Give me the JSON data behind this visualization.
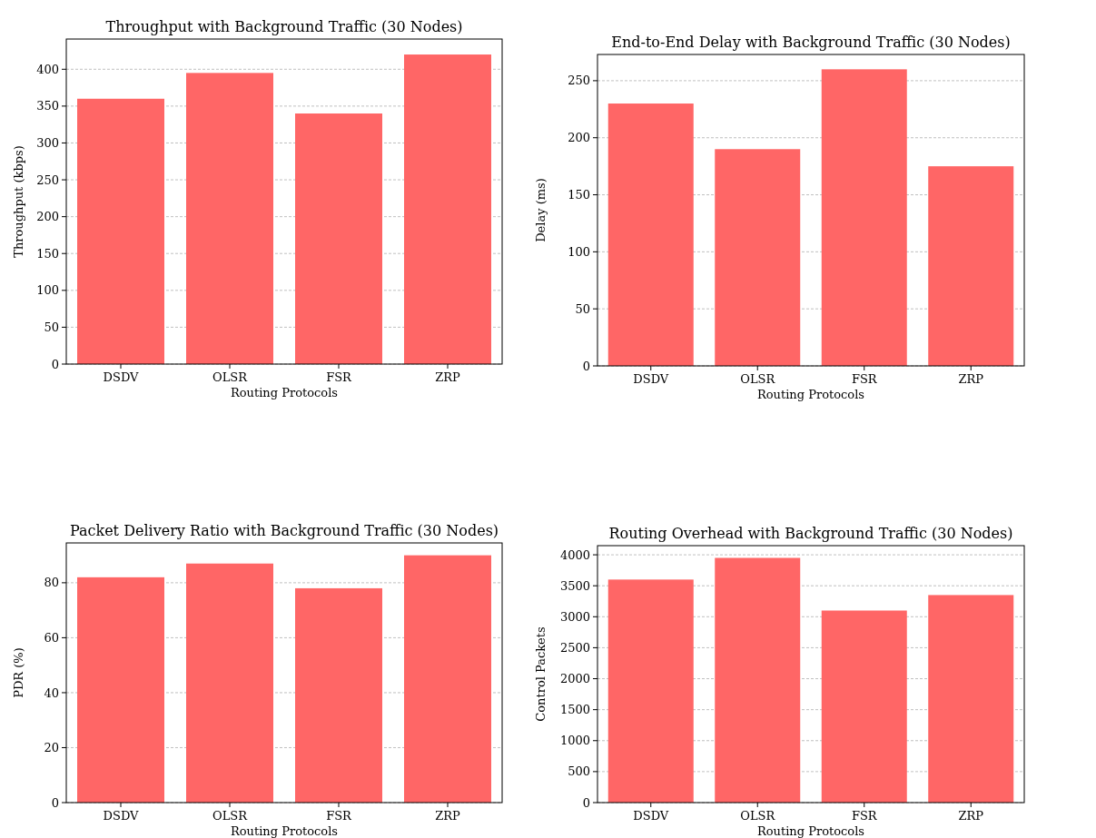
{
  "chart_data": [
    {
      "type": "bar",
      "title": "Throughput with Background Traffic (30 Nodes)",
      "xlabel": "Routing Protocols",
      "ylabel": "Throughput (kbps)",
      "categories": [
        "DSDV",
        "OLSR",
        "FSR",
        "ZRP"
      ],
      "values": [
        360,
        395,
        340,
        420
      ],
      "color": "#ff6666",
      "ylim": [
        0,
        441
      ],
      "yticks": [
        0,
        50,
        100,
        150,
        200,
        250,
        300,
        350,
        400
      ],
      "grid": "y"
    },
    {
      "type": "bar",
      "title": "End-to-End Delay with Background Traffic (30 Nodes)",
      "xlabel": "Routing Protocols",
      "ylabel": "Delay (ms)",
      "categories": [
        "DSDV",
        "OLSR",
        "FSR",
        "ZRP"
      ],
      "values": [
        230,
        190,
        260,
        175
      ],
      "color": "#ff6666",
      "ylim": [
        0,
        273
      ],
      "yticks": [
        0,
        50,
        100,
        150,
        200,
        250
      ],
      "grid": "y"
    },
    {
      "type": "bar",
      "title": "Packet Delivery Ratio with Background Traffic (30 Nodes)",
      "xlabel": "Routing Protocols",
      "ylabel": "PDR (%)",
      "categories": [
        "DSDV",
        "OLSR",
        "FSR",
        "ZRP"
      ],
      "values": [
        82,
        87,
        78,
        90
      ],
      "color": "#ff6666",
      "ylim": [
        0,
        94.5
      ],
      "yticks": [
        0,
        20,
        40,
        60,
        80
      ],
      "grid": "y"
    },
    {
      "type": "bar",
      "title": "Routing Overhead with Background Traffic (30 Nodes)",
      "xlabel": "Routing Protocols",
      "ylabel": "Control Packets",
      "categories": [
        "DSDV",
        "OLSR",
        "FSR",
        "ZRP"
      ],
      "values": [
        3600,
        3950,
        3100,
        3350
      ],
      "color": "#ff6666",
      "ylim": [
        0,
        4147.5
      ],
      "yticks": [
        0,
        500,
        1000,
        1500,
        2000,
        2500,
        3000,
        3500,
        4000
      ],
      "grid": "y"
    }
  ]
}
